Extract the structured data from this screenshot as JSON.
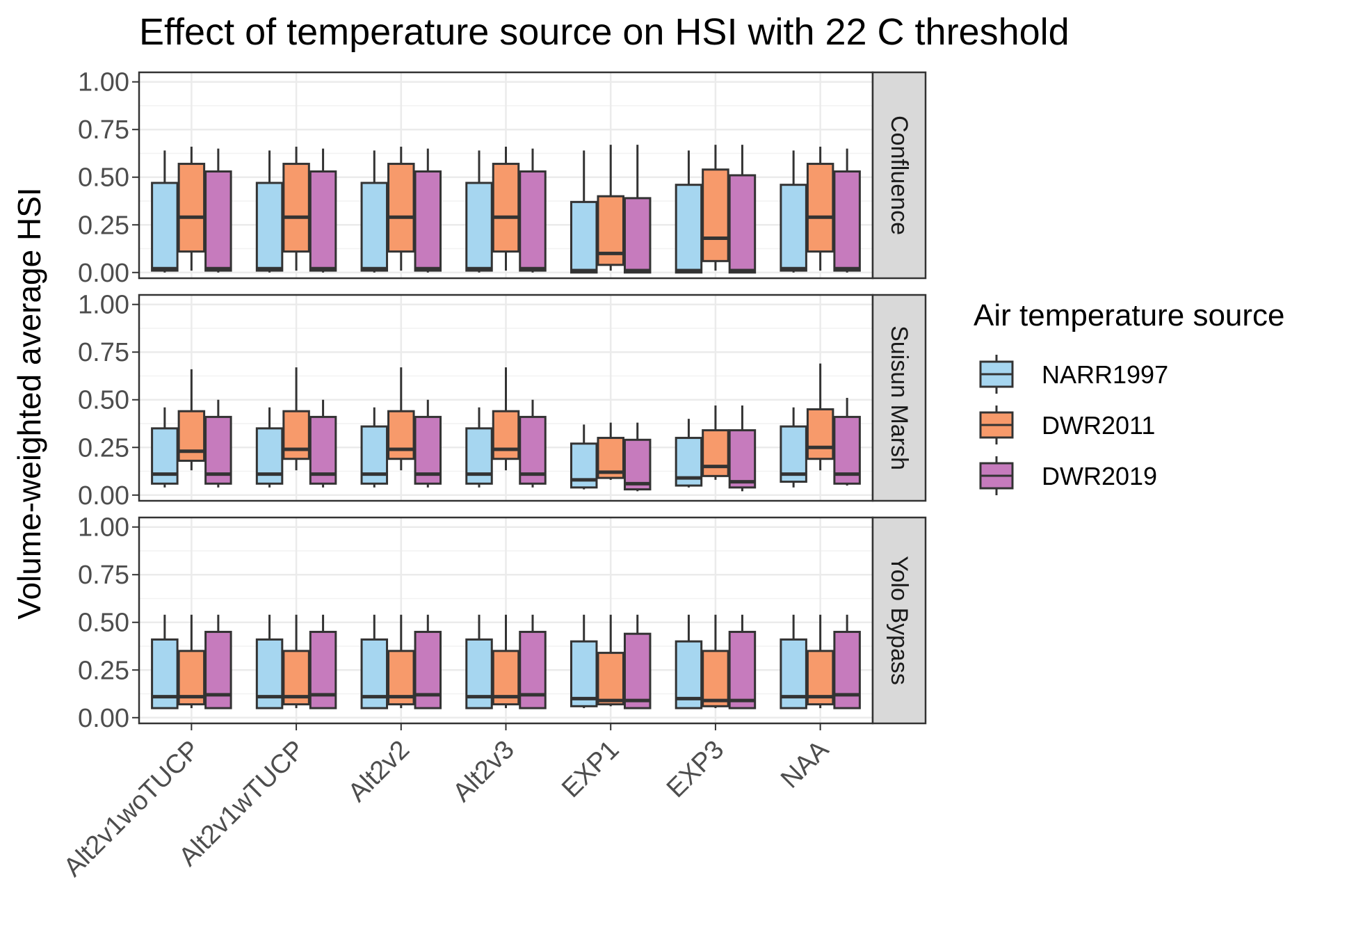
{
  "chart_data": {
    "type": "boxplot",
    "title": "Effect of temperature source on HSI with 22 C threshold",
    "xlabel": "",
    "ylabel": "Volume-weighted average HSI",
    "ylim": [
      -0.03,
      1.05
    ],
    "y_ticks": [
      "0.00",
      "0.25",
      "0.50",
      "0.75",
      "1.00"
    ],
    "grid": true,
    "categories": [
      "Alt2v1woTUCP",
      "Alt2v1wTUCP",
      "Alt2v2",
      "Alt2v3",
      "EXP1",
      "EXP3",
      "NAA"
    ],
    "legend": {
      "title": "Air temperature source",
      "position": "right",
      "entries": [
        {
          "name": "NARR1997",
          "color": "#a6d6f0"
        },
        {
          "name": "DWR2011",
          "color": "#f79a6b"
        },
        {
          "name": "DWR2019",
          "color": "#c67bbd"
        }
      ]
    },
    "facets": [
      {
        "name": "Confluence",
        "stats": [
          [
            [
              0,
              0.01,
              0.02,
              0.47,
              0.64
            ],
            [
              0.01,
              0.11,
              0.29,
              0.57,
              0.66
            ],
            [
              0,
              0.01,
              0.02,
              0.53,
              0.65
            ]
          ],
          [
            [
              0,
              0.01,
              0.02,
              0.47,
              0.64
            ],
            [
              0.01,
              0.11,
              0.29,
              0.57,
              0.66
            ],
            [
              0,
              0.01,
              0.02,
              0.53,
              0.65
            ]
          ],
          [
            [
              0,
              0.01,
              0.02,
              0.47,
              0.64
            ],
            [
              0.01,
              0.11,
              0.29,
              0.57,
              0.66
            ],
            [
              0,
              0.01,
              0.02,
              0.53,
              0.65
            ]
          ],
          [
            [
              0,
              0.01,
              0.02,
              0.47,
              0.64
            ],
            [
              0.01,
              0.11,
              0.29,
              0.57,
              0.66
            ],
            [
              0,
              0.01,
              0.02,
              0.53,
              0.65
            ]
          ],
          [
            [
              0,
              0.0,
              0.01,
              0.37,
              0.64
            ],
            [
              0.01,
              0.04,
              0.1,
              0.4,
              0.67
            ],
            [
              0,
              0.0,
              0.01,
              0.39,
              0.67
            ]
          ],
          [
            [
              0,
              0.0,
              0.01,
              0.46,
              0.64
            ],
            [
              0.01,
              0.06,
              0.18,
              0.54,
              0.67
            ],
            [
              0,
              0.0,
              0.01,
              0.51,
              0.67
            ]
          ],
          [
            [
              0,
              0.01,
              0.02,
              0.46,
              0.64
            ],
            [
              0.01,
              0.11,
              0.29,
              0.57,
              0.66
            ],
            [
              0,
              0.01,
              0.02,
              0.53,
              0.65
            ]
          ]
        ]
      },
      {
        "name": "Suisun Marsh",
        "stats": [
          [
            [
              0.04,
              0.06,
              0.11,
              0.35,
              0.46
            ],
            [
              0.13,
              0.18,
              0.23,
              0.44,
              0.66
            ],
            [
              0.04,
              0.06,
              0.11,
              0.41,
              0.5
            ]
          ],
          [
            [
              0.04,
              0.06,
              0.11,
              0.35,
              0.46
            ],
            [
              0.13,
              0.19,
              0.24,
              0.44,
              0.67
            ],
            [
              0.04,
              0.06,
              0.11,
              0.41,
              0.5
            ]
          ],
          [
            [
              0.04,
              0.06,
              0.11,
              0.36,
              0.46
            ],
            [
              0.13,
              0.19,
              0.24,
              0.44,
              0.67
            ],
            [
              0.04,
              0.06,
              0.11,
              0.41,
              0.5
            ]
          ],
          [
            [
              0.04,
              0.06,
              0.11,
              0.35,
              0.46
            ],
            [
              0.13,
              0.19,
              0.24,
              0.44,
              0.67
            ],
            [
              0.04,
              0.06,
              0.11,
              0.41,
              0.5
            ]
          ],
          [
            [
              0.03,
              0.04,
              0.08,
              0.27,
              0.37
            ],
            [
              0.08,
              0.09,
              0.12,
              0.3,
              0.38
            ],
            [
              0.02,
              0.03,
              0.06,
              0.29,
              0.38
            ]
          ],
          [
            [
              0.04,
              0.05,
              0.09,
              0.3,
              0.4
            ],
            [
              0.08,
              0.1,
              0.15,
              0.34,
              0.47
            ],
            [
              0.02,
              0.04,
              0.07,
              0.34,
              0.47
            ]
          ],
          [
            [
              0.04,
              0.07,
              0.11,
              0.36,
              0.46
            ],
            [
              0.13,
              0.19,
              0.25,
              0.45,
              0.69
            ],
            [
              0.05,
              0.06,
              0.11,
              0.41,
              0.51
            ]
          ]
        ]
      },
      {
        "name": "Yolo Bypass",
        "stats": [
          [
            [
              0.05,
              0.05,
              0.11,
              0.41,
              0.54
            ],
            [
              0.05,
              0.07,
              0.11,
              0.35,
              0.54
            ],
            [
              0.05,
              0.05,
              0.12,
              0.45,
              0.54
            ]
          ],
          [
            [
              0.05,
              0.05,
              0.11,
              0.41,
              0.54
            ],
            [
              0.05,
              0.07,
              0.11,
              0.35,
              0.54
            ],
            [
              0.05,
              0.05,
              0.12,
              0.45,
              0.54
            ]
          ],
          [
            [
              0.05,
              0.05,
              0.11,
              0.41,
              0.54
            ],
            [
              0.05,
              0.07,
              0.11,
              0.35,
              0.54
            ],
            [
              0.05,
              0.05,
              0.12,
              0.45,
              0.54
            ]
          ],
          [
            [
              0.05,
              0.05,
              0.11,
              0.41,
              0.54
            ],
            [
              0.05,
              0.07,
              0.11,
              0.35,
              0.54
            ],
            [
              0.05,
              0.05,
              0.12,
              0.45,
              0.54
            ]
          ],
          [
            [
              0.05,
              0.06,
              0.1,
              0.4,
              0.54
            ],
            [
              0.06,
              0.07,
              0.09,
              0.34,
              0.54
            ],
            [
              0.05,
              0.05,
              0.09,
              0.44,
              0.54
            ]
          ],
          [
            [
              0.05,
              0.05,
              0.1,
              0.4,
              0.54
            ],
            [
              0.05,
              0.06,
              0.09,
              0.35,
              0.54
            ],
            [
              0.05,
              0.05,
              0.09,
              0.45,
              0.54
            ]
          ],
          [
            [
              0.05,
              0.05,
              0.11,
              0.41,
              0.54
            ],
            [
              0.05,
              0.07,
              0.11,
              0.35,
              0.54
            ],
            [
              0.05,
              0.05,
              0.12,
              0.45,
              0.54
            ]
          ]
        ]
      }
    ]
  }
}
